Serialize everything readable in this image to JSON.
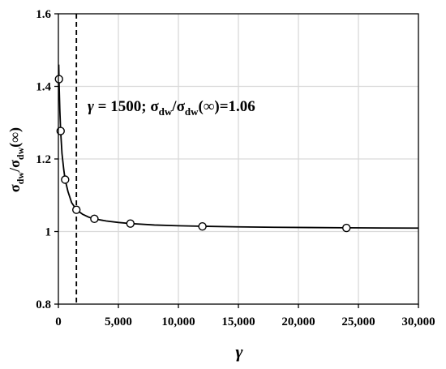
{
  "chart_data": {
    "type": "scatter",
    "title": "",
    "xlabel": "γ",
    "ylabel": {
      "sigma1": "σ",
      "sub1": "dw",
      "slash": "/",
      "sigma2": "σ",
      "sub2": "dw",
      "paren": "(∞)"
    },
    "xlim": [
      0,
      30000
    ],
    "ylim": [
      0.8,
      1.6
    ],
    "x_ticks": [
      0,
      5000,
      10000,
      15000,
      20000,
      25000,
      30000
    ],
    "x_tick_labels": [
      "0",
      "5,000",
      "10,000",
      "15,000",
      "20,000",
      "25,000",
      "30,000"
    ],
    "y_ticks": [
      0.8,
      1.0,
      1.2,
      1.4,
      1.6
    ],
    "y_tick_labels": [
      "0.8",
      "1",
      "1.2",
      "1.4",
      "1.6"
    ],
    "grid": true,
    "series": [
      {
        "markers": "open-circle",
        "x": [
          50,
          187.5,
          562.5,
          1500,
          3000,
          6000,
          12000,
          24000
        ],
        "y": [
          1.42,
          1.277,
          1.143,
          1.06,
          1.035,
          1.022,
          1.014,
          1.01
        ]
      }
    ],
    "fit_curve": {
      "x": [
        30,
        60,
        120,
        187.5,
        300,
        450,
        562.5,
        800,
        1100,
        1500,
        2000,
        2500,
        3000,
        4000,
        5000,
        6000,
        8000,
        10000,
        12000,
        15000,
        18000,
        21000,
        24000,
        27000,
        30000
      ],
      "y": [
        1.46,
        1.405,
        1.335,
        1.277,
        1.215,
        1.17,
        1.143,
        1.11,
        1.08,
        1.06,
        1.048,
        1.04,
        1.035,
        1.029,
        1.025,
        1.022,
        1.018,
        1.016,
        1.0145,
        1.0128,
        1.0117,
        1.011,
        1.0103,
        1.0098,
        1.0095
      ]
    },
    "reference_line": {
      "x": 1500,
      "style": "dashed"
    },
    "annotation": {
      "gamma": "γ",
      "eq1": " = 1500; ",
      "sigma1": "σ",
      "sub1": "dw",
      "slash": "/",
      "sigma2": "σ",
      "sub2": "dw",
      "tail": "(∞)=1.06"
    },
    "colors": {
      "grid": "#d9d9d9",
      "axis": "#000000",
      "curve": "#000000",
      "marker_fill": "#ffffff"
    }
  }
}
